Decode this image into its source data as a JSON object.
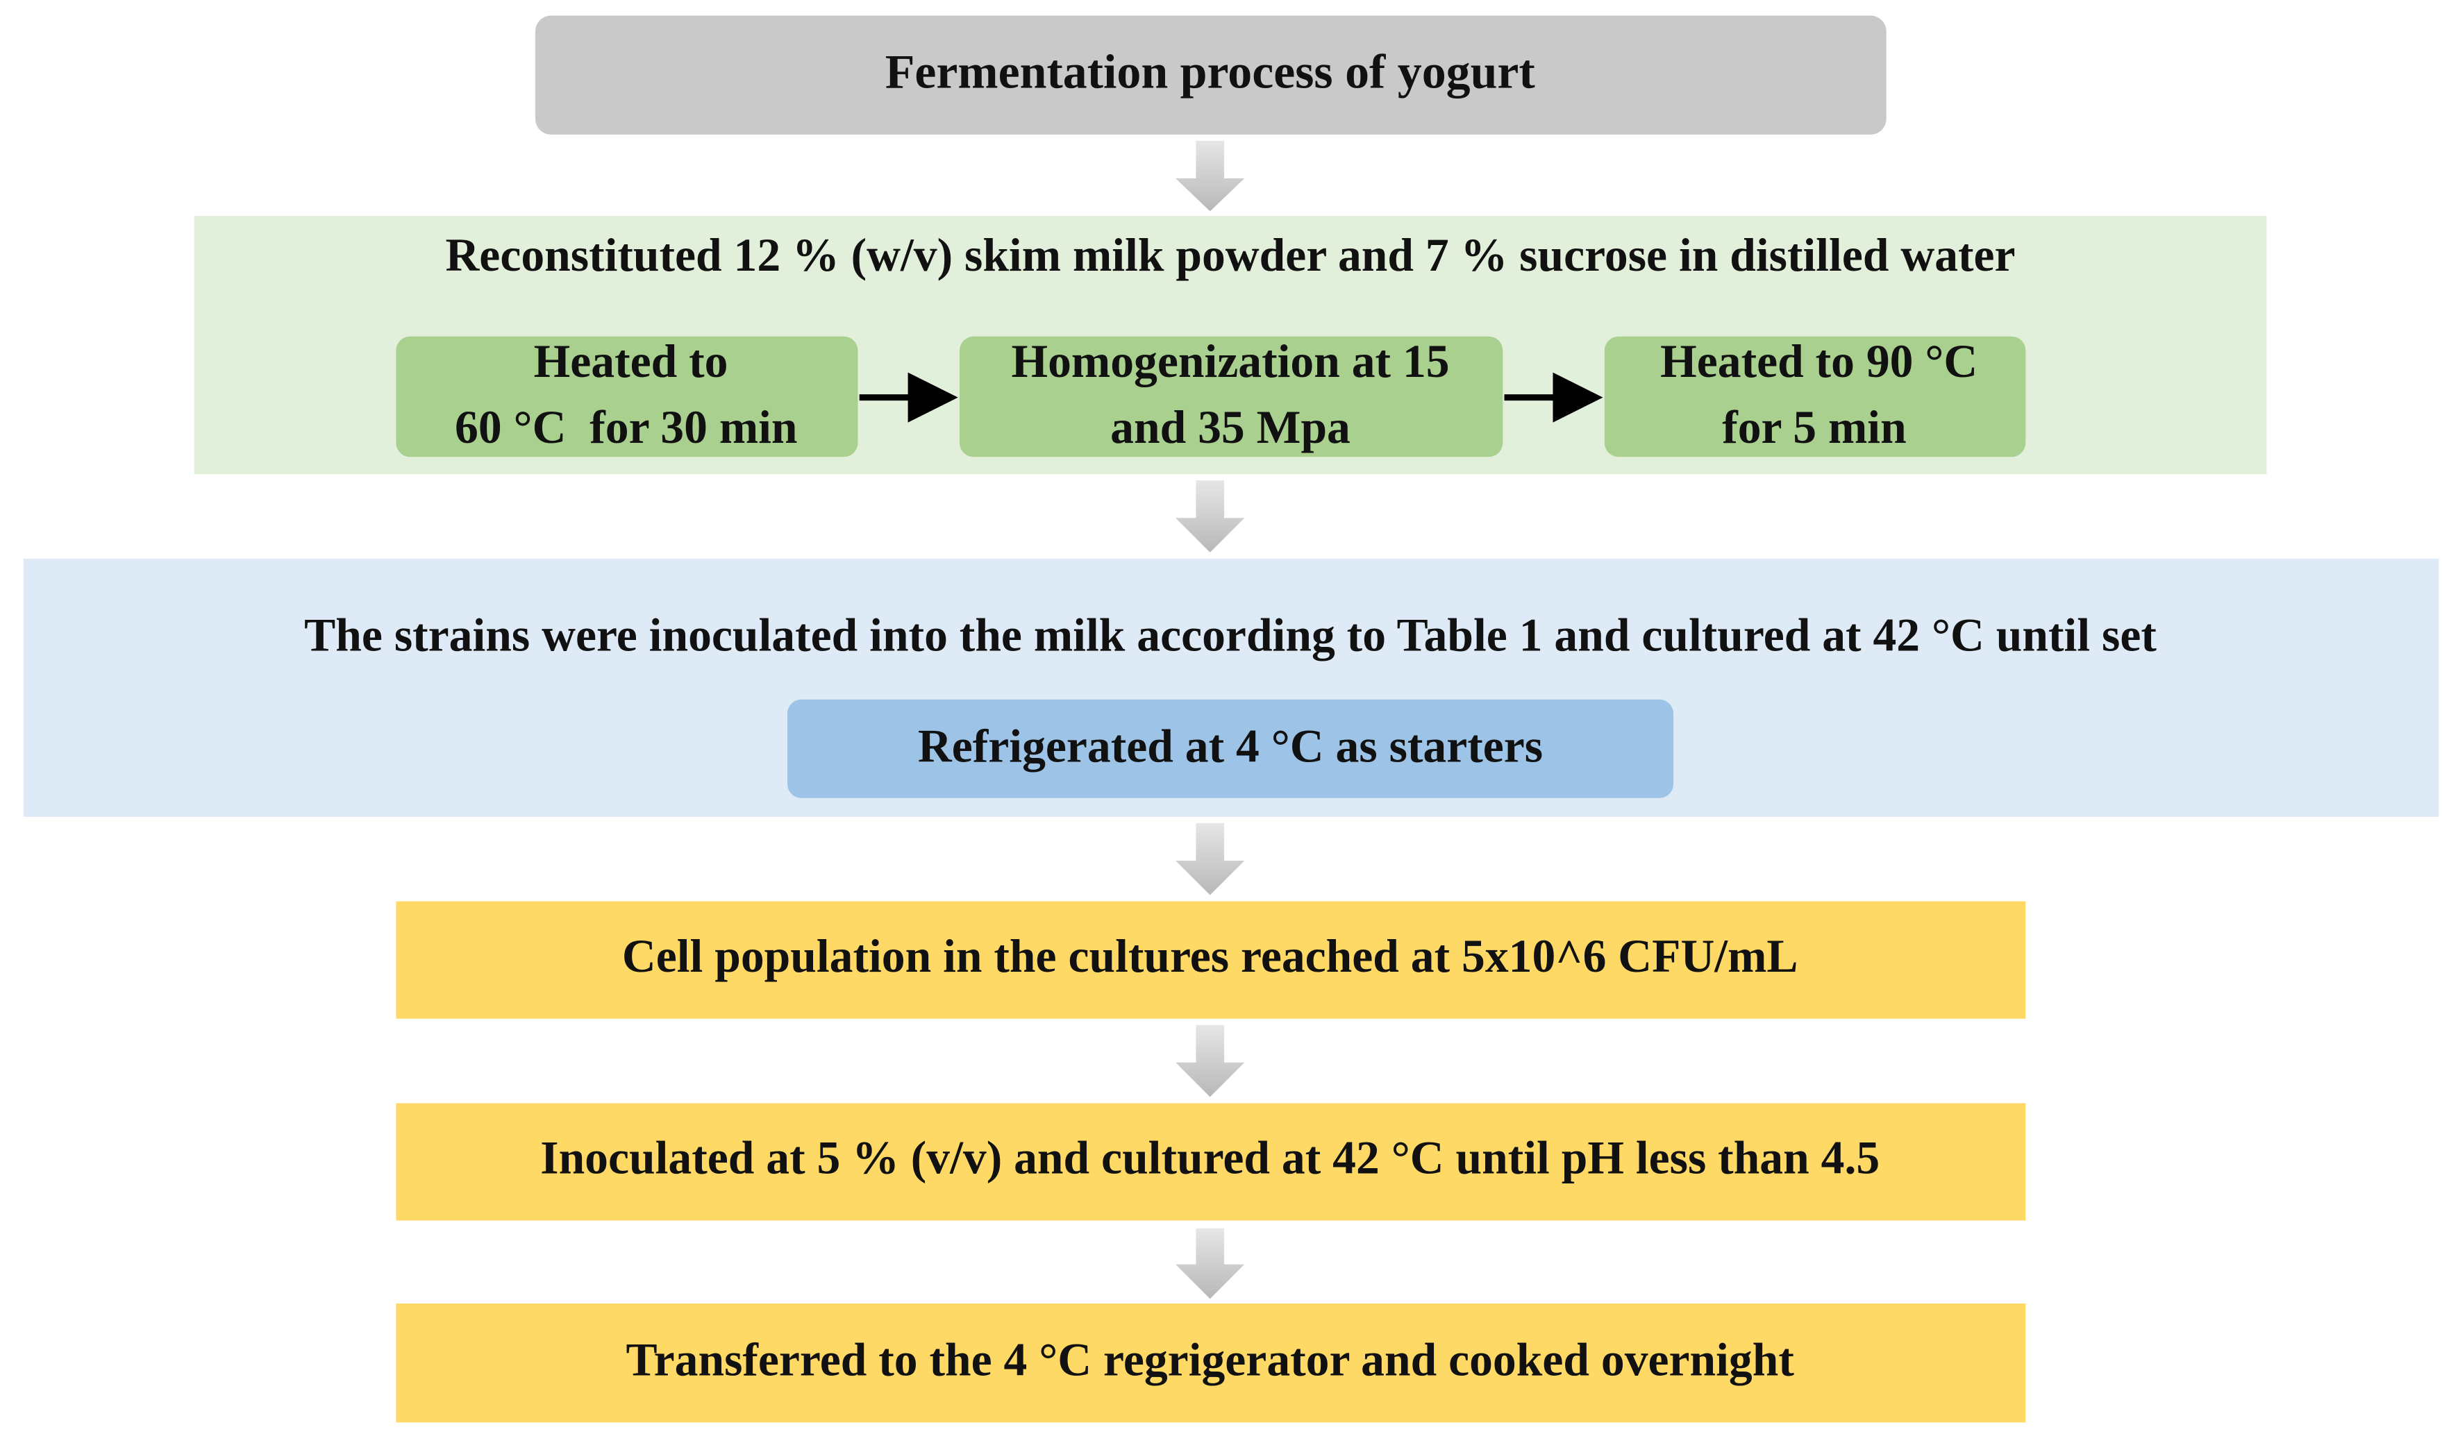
{
  "title": "Fermentation process of yogurt",
  "steps": [
    {
      "text": "Reconstituted 12 % (w/v) skim milk powder and 7 % sucrose in distilled water",
      "substeps": [
        {
          "lines": [
            "Heated to",
            "60 °C  for 30 min"
          ]
        },
        {
          "lines": [
            "Homogenization at 15",
            "and 35 Mpa"
          ]
        },
        {
          "lines": [
            "Heated to 90 °C",
            "for 5 min"
          ]
        }
      ]
    },
    {
      "text": "The strains were inoculated into the milk according to Table 1 and cultured at 42 °C until set",
      "substeps": [
        {
          "lines": [
            "Refrigerated at 4 °C as starters"
          ]
        }
      ]
    },
    {
      "text": "Cell population in the cultures reached at 5x10^6 CFU/mL"
    },
    {
      "text": "Inoculated at 5 % (v/v) and cultured at 42 °C until pH less than 4.5"
    },
    {
      "text": "Transferred to the 4 °C regrigerator and cooked overnight"
    }
  ]
}
